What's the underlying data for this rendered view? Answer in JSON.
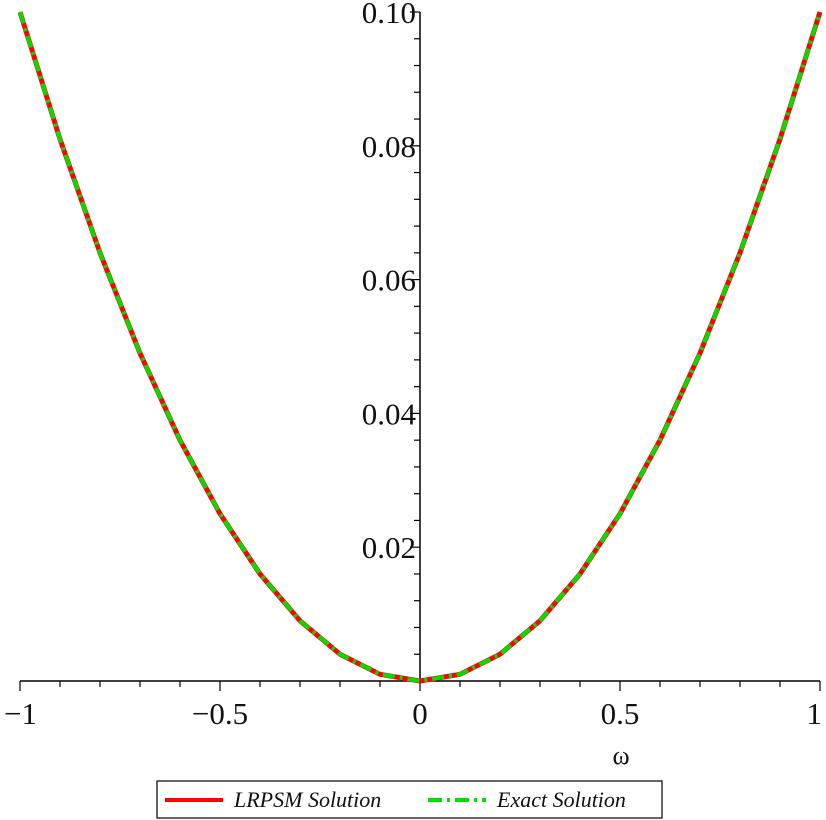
{
  "chart_data": {
    "type": "line",
    "title": "",
    "xlabel": "ω",
    "ylabel": "",
    "xlim": [
      -1,
      1
    ],
    "ylim": [
      0,
      0.1
    ],
    "x_ticks": [
      -1,
      -0.5,
      0,
      0.5,
      1
    ],
    "x_tick_labels": [
      "−1",
      "−0.5",
      "0",
      "0.5",
      "1"
    ],
    "y_ticks": [
      0.02,
      0.04,
      0.06,
      0.08,
      0.1
    ],
    "y_tick_labels": [
      "0.02",
      "0.04",
      "0.06",
      "0.08",
      "0.10"
    ],
    "grid": false,
    "legend_position": "bottom",
    "x": [
      -1,
      -0.9,
      -0.8,
      -0.7,
      -0.6,
      -0.5,
      -0.4,
      -0.3,
      -0.2,
      -0.1,
      0,
      0.1,
      0.2,
      0.3,
      0.4,
      0.5,
      0.6,
      0.7,
      0.8,
      0.9,
      1
    ],
    "series": [
      {
        "name": "LRPSM Solution",
        "color": "#ff0000",
        "style": "solid",
        "values": [
          0.1,
          0.081,
          0.064,
          0.049,
          0.036,
          0.025,
          0.016,
          0.009,
          0.004,
          0.001,
          0,
          0.001,
          0.004,
          0.009,
          0.016,
          0.025,
          0.036,
          0.049,
          0.064,
          0.081,
          0.1
        ]
      },
      {
        "name": "Exact Solution",
        "color": "#00e000",
        "style": "dash-dot",
        "values": [
          0.1,
          0.081,
          0.064,
          0.049,
          0.036,
          0.025,
          0.016,
          0.009,
          0.004,
          0.001,
          0,
          0.001,
          0.004,
          0.009,
          0.016,
          0.025,
          0.036,
          0.049,
          0.064,
          0.081,
          0.1
        ]
      }
    ]
  }
}
